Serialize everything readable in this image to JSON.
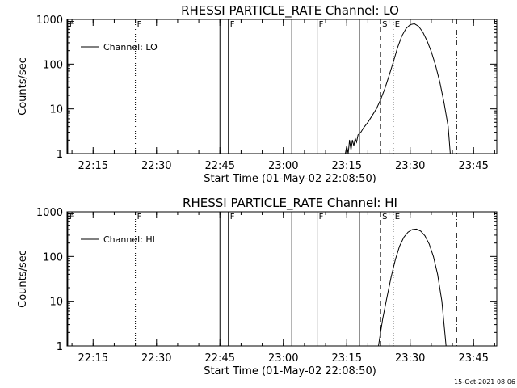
{
  "chart_data": [
    {
      "type": "line",
      "title": "RHESSI PARTICLE_RATE Channel: LO",
      "xlabel": "Start Time (01-May-02 22:08:50)",
      "ylabel": "Counts/sec",
      "y_scale": "log",
      "ylim": [
        1,
        1000
      ],
      "xlim": [
        "22:08:50",
        "23:50:30"
      ],
      "x_ticks": [
        "22:15",
        "22:30",
        "22:45",
        "23:00",
        "23:15",
        "23:30",
        "23:45"
      ],
      "y_ticks": [
        "1",
        "10",
        "100",
        "1000"
      ],
      "legend": {
        "placement": "top-left",
        "entries": [
          "Channel: LO"
        ]
      },
      "markers": [
        {
          "time": "22:09",
          "style": "solid",
          "label": "F"
        },
        {
          "time": "22:25",
          "style": "dotted",
          "label": "F"
        },
        {
          "time": "22:45",
          "style": "solid",
          "label": ""
        },
        {
          "time": "22:47",
          "style": "solid",
          "label": "F"
        },
        {
          "time": "23:02",
          "style": "solid",
          "label": ""
        },
        {
          "time": "23:08",
          "style": "solid",
          "label": "F"
        },
        {
          "time": "23:18",
          "style": "solid",
          "label": ""
        },
        {
          "time": "23:23",
          "style": "dashed",
          "label": "S"
        },
        {
          "time": "23:26",
          "style": "dotted",
          "label": "E"
        },
        {
          "time": "23:41",
          "style": "dashdot",
          "label": ""
        }
      ],
      "series": [
        {
          "name": "Channel: LO",
          "points": [
            [
              "23:14:40",
              1
            ],
            [
              "23:15:00",
              1.5
            ],
            [
              "23:15:20",
              1
            ],
            [
              "23:15:40",
              2
            ],
            [
              "23:16:00",
              1.2
            ],
            [
              "23:16:20",
              2
            ],
            [
              "23:16:40",
              1.5
            ],
            [
              "23:17:00",
              2.2
            ],
            [
              "23:17:20",
              1.8
            ],
            [
              "23:17:40",
              2.6
            ],
            [
              "23:18:20",
              3
            ],
            [
              "23:19:00",
              3.8
            ],
            [
              "23:20:00",
              5
            ],
            [
              "23:21:00",
              7
            ],
            [
              "23:22:00",
              10
            ],
            [
              "23:23:00",
              16
            ],
            [
              "23:24:00",
              28
            ],
            [
              "23:25:00",
              55
            ],
            [
              "23:26:00",
              110
            ],
            [
              "23:27:00",
              230
            ],
            [
              "23:28:00",
              420
            ],
            [
              "23:29:00",
              620
            ],
            [
              "23:30:00",
              760
            ],
            [
              "23:31:00",
              800
            ],
            [
              "23:32:00",
              700
            ],
            [
              "23:33:00",
              520
            ],
            [
              "23:34:00",
              330
            ],
            [
              "23:35:00",
              190
            ],
            [
              "23:36:00",
              95
            ],
            [
              "23:37:00",
              40
            ],
            [
              "23:38:00",
              14
            ],
            [
              "23:39:00",
              4
            ],
            [
              "23:39:30",
              1
            ]
          ]
        }
      ]
    },
    {
      "type": "line",
      "title": "RHESSI PARTICLE_RATE Channel: HI",
      "xlabel": "Start Time (01-May-02 22:08:50)",
      "ylabel": "Counts/sec",
      "y_scale": "log",
      "ylim": [
        1,
        1000
      ],
      "xlim": [
        "22:08:50",
        "23:50:30"
      ],
      "x_ticks": [
        "22:15",
        "22:30",
        "22:45",
        "23:00",
        "23:15",
        "23:30",
        "23:45"
      ],
      "y_ticks": [
        "1",
        "10",
        "100",
        "1000"
      ],
      "legend": {
        "placement": "top-left",
        "entries": [
          "Channel: HI"
        ]
      },
      "markers": [
        {
          "time": "22:09",
          "style": "solid",
          "label": "F"
        },
        {
          "time": "22:25",
          "style": "dotted",
          "label": "F"
        },
        {
          "time": "22:45",
          "style": "solid",
          "label": ""
        },
        {
          "time": "22:47",
          "style": "solid",
          "label": "F"
        },
        {
          "time": "23:02",
          "style": "solid",
          "label": ""
        },
        {
          "time": "23:08",
          "style": "solid",
          "label": "F"
        },
        {
          "time": "23:18",
          "style": "solid",
          "label": ""
        },
        {
          "time": "23:23",
          "style": "dashed",
          "label": "S"
        },
        {
          "time": "23:26",
          "style": "dotted",
          "label": "E"
        },
        {
          "time": "23:41",
          "style": "dashdot",
          "label": ""
        }
      ],
      "series": [
        {
          "name": "Channel: HI",
          "points": [
            [
              "23:22:30",
              1
            ],
            [
              "23:23:30",
              4
            ],
            [
              "23:24:30",
              12
            ],
            [
              "23:25:30",
              35
            ],
            [
              "23:26:30",
              85
            ],
            [
              "23:27:30",
              170
            ],
            [
              "23:28:30",
              270
            ],
            [
              "23:29:30",
              350
            ],
            [
              "23:30:30",
              400
            ],
            [
              "23:31:30",
              410
            ],
            [
              "23:32:30",
              370
            ],
            [
              "23:33:30",
              290
            ],
            [
              "23:34:30",
              190
            ],
            [
              "23:35:30",
              100
            ],
            [
              "23:36:30",
              40
            ],
            [
              "23:37:30",
              10
            ],
            [
              "23:38:30",
              1
            ]
          ]
        }
      ]
    }
  ],
  "footer_timestamp": "15-Oct-2021 08:06"
}
